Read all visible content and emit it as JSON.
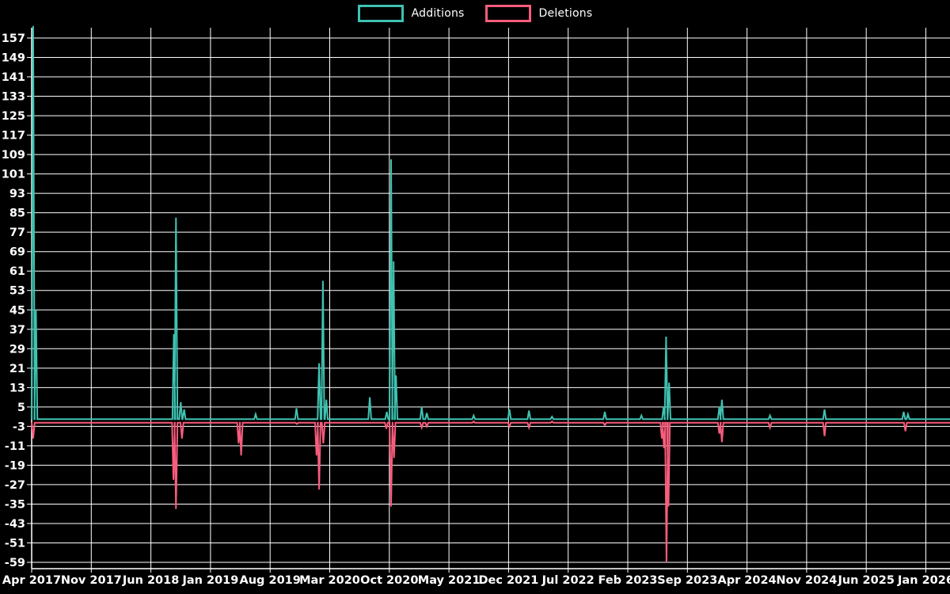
{
  "legend": {
    "additions_label": "Additions",
    "deletions_label": "Deletions"
  },
  "colors": {
    "background": "#000000",
    "grid": "#ffffff",
    "axis": "#ffffff",
    "text": "#ffffff",
    "additions": "#3fc2b1",
    "deletions": "#f85c7c"
  },
  "chart_data": {
    "type": "line",
    "title": "",
    "xlabel": "",
    "ylabel": "",
    "grid": true,
    "legend_position": "top-center",
    "ylim": [
      -59,
      157
    ],
    "y_tick_step": 8,
    "y_ticks": [
      157,
      149,
      141,
      133,
      125,
      117,
      109,
      101,
      93,
      85,
      77,
      69,
      61,
      53,
      45,
      37,
      29,
      21,
      13,
      5,
      -3,
      -11,
      -19,
      -27,
      -35,
      -43,
      -51,
      -59
    ],
    "x_range_months": 105,
    "x_ticks": [
      {
        "m": 0,
        "label": "Apr 2017"
      },
      {
        "m": 7,
        "label": "Nov 2017"
      },
      {
        "m": 14,
        "label": "Jun 2018"
      },
      {
        "m": 21,
        "label": "Jan 2019"
      },
      {
        "m": 28,
        "label": "Aug 2019"
      },
      {
        "m": 35,
        "label": "Mar 2020"
      },
      {
        "m": 42,
        "label": "Oct 2020"
      },
      {
        "m": 49,
        "label": "May 2021"
      },
      {
        "m": 56,
        "label": "Dec 2021"
      },
      {
        "m": 63,
        "label": "Jul 2022"
      },
      {
        "m": 70,
        "label": "Feb 2023"
      },
      {
        "m": 77,
        "label": "Sep 2023"
      },
      {
        "m": 84,
        "label": "Apr 2024"
      },
      {
        "m": 91,
        "label": "Nov 2024"
      },
      {
        "m": 98,
        "label": "Jun 2025"
      },
      {
        "m": 105,
        "label": "Jan 2026"
      }
    ],
    "series": [
      {
        "name": "Additions",
        "color": "#3fc2b1",
        "baseline": 0,
        "spikes": [
          [
            0.18,
            162
          ],
          [
            0.5,
            45
          ],
          [
            16.7,
            35
          ],
          [
            16.95,
            83
          ],
          [
            17.5,
            7
          ],
          [
            17.9,
            4
          ],
          [
            26.3,
            2
          ],
          [
            31.1,
            4.5
          ],
          [
            33.75,
            23
          ],
          [
            34.2,
            57
          ],
          [
            34.6,
            8
          ],
          [
            39.7,
            9
          ],
          [
            41.7,
            3
          ],
          [
            42.2,
            107
          ],
          [
            42.5,
            65
          ],
          [
            42.78,
            18
          ],
          [
            45.8,
            5
          ],
          [
            46.4,
            2.5
          ],
          [
            51.9,
            1.5
          ],
          [
            56.1,
            4
          ],
          [
            58.4,
            3.5
          ],
          [
            61.1,
            1
          ],
          [
            67.3,
            3
          ],
          [
            71.6,
            1.5
          ],
          [
            74.2,
            5
          ],
          [
            74.5,
            34
          ],
          [
            74.85,
            15
          ],
          [
            80.75,
            5
          ],
          [
            81.05,
            8
          ],
          [
            86.7,
            1.5
          ],
          [
            93.1,
            4
          ],
          [
            102.4,
            3
          ],
          [
            102.9,
            2
          ]
        ]
      },
      {
        "name": "Deletions",
        "color": "#f85c7c",
        "baseline": -1.5,
        "spikes": [
          [
            0.18,
            -8
          ],
          [
            16.65,
            -25
          ],
          [
            16.95,
            -37
          ],
          [
            17.65,
            -8
          ],
          [
            24.3,
            -10
          ],
          [
            24.6,
            -15
          ],
          [
            31.15,
            -2
          ],
          [
            33.45,
            -15
          ],
          [
            33.75,
            -29
          ],
          [
            34.25,
            -10
          ],
          [
            41.65,
            -4
          ],
          [
            42.2,
            -36
          ],
          [
            42.55,
            -16
          ],
          [
            45.8,
            -3.5
          ],
          [
            46.4,
            -3
          ],
          [
            51.9,
            -1
          ],
          [
            56.1,
            -3
          ],
          [
            58.4,
            -3.5
          ],
          [
            61.1,
            -1
          ],
          [
            67.3,
            -2.5
          ],
          [
            74.0,
            -8
          ],
          [
            74.25,
            -12
          ],
          [
            74.55,
            -59
          ],
          [
            74.78,
            -36
          ],
          [
            80.75,
            -6
          ],
          [
            81.05,
            -9.5
          ],
          [
            86.7,
            -3.5
          ],
          [
            93.1,
            -7
          ],
          [
            102.6,
            -5
          ]
        ]
      }
    ]
  }
}
